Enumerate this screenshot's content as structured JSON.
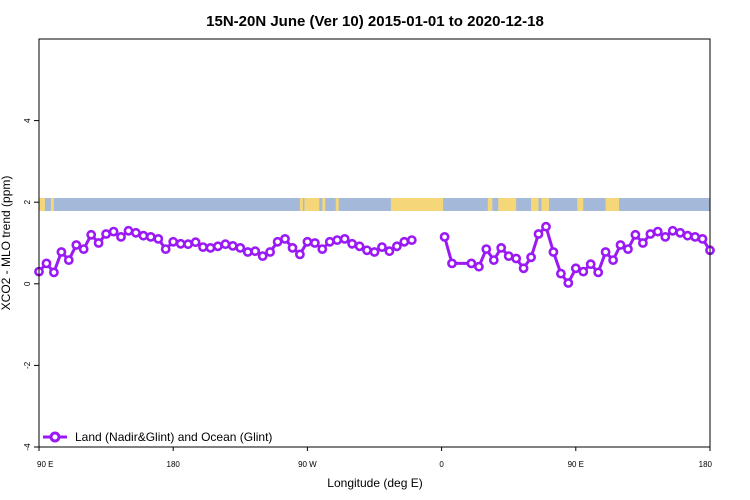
{
  "chart_data": {
    "type": "line",
    "title": "15N-20N June (Ver 10)   2015-01-01 to 2020-12-18",
    "xlabel": "Longitude (deg E)",
    "ylabel": "XCO2 - MLO trend (ppm)",
    "ylim": [
      -4,
      6
    ],
    "y_ticks": [
      -4,
      -2,
      0,
      2,
      4
    ],
    "x_tick_labels": [
      "90 E",
      "180",
      "90 W",
      "0",
      "90 E",
      "180"
    ],
    "series": [
      {
        "name": "Land (Nadir&Glint) and Ocean (Glint)",
        "color": "#9b19f5",
        "segments": [
          [
            [
              90,
              0.3
            ],
            [
              95,
              0.5
            ],
            [
              100,
              0.28
            ],
            [
              105,
              0.78
            ],
            [
              110,
              0.58
            ],
            [
              115,
              0.95
            ],
            [
              120,
              0.85
            ],
            [
              125,
              1.2
            ],
            [
              130,
              1.0
            ],
            [
              135,
              1.22
            ],
            [
              140,
              1.28
            ],
            [
              145,
              1.15
            ],
            [
              150,
              1.3
            ],
            [
              155,
              1.25
            ],
            [
              160,
              1.18
            ],
            [
              165,
              1.15
            ],
            [
              170,
              1.1
            ],
            [
              175,
              0.85
            ],
            [
              180,
              1.03
            ],
            [
              185,
              0.98
            ],
            [
              190,
              0.97
            ],
            [
              195,
              1.02
            ],
            [
              200,
              0.9
            ],
            [
              205,
              0.88
            ],
            [
              210,
              0.92
            ],
            [
              215,
              0.97
            ],
            [
              220,
              0.93
            ],
            [
              225,
              0.88
            ],
            [
              230,
              0.78
            ],
            [
              235,
              0.8
            ],
            [
              240,
              0.68
            ],
            [
              245,
              0.78
            ],
            [
              250,
              1.03
            ],
            [
              255,
              1.1
            ],
            [
              260,
              0.88
            ],
            [
              265,
              0.72
            ],
            [
              270,
              1.03
            ],
            [
              275,
              1.0
            ],
            [
              280,
              0.85
            ],
            [
              285,
              1.03
            ],
            [
              290,
              1.07
            ],
            [
              295,
              1.1
            ],
            [
              300,
              0.98
            ],
            [
              305,
              0.92
            ],
            [
              310,
              0.82
            ],
            [
              315,
              0.78
            ],
            [
              320,
              0.9
            ],
            [
              325,
              0.8
            ],
            [
              330,
              0.92
            ],
            [
              335,
              1.03
            ],
            [
              340,
              1.07
            ]
          ],
          [
            [
              362,
              1.15
            ],
            [
              367,
              0.5
            ],
            [
              380,
              0.5
            ],
            [
              385,
              0.42
            ],
            [
              390,
              0.85
            ],
            [
              395,
              0.58
            ],
            [
              400,
              0.88
            ],
            [
              405,
              0.68
            ],
            [
              410,
              0.62
            ],
            [
              415,
              0.38
            ],
            [
              420,
              0.65
            ],
            [
              425,
              1.22
            ],
            [
              430,
              1.4
            ],
            [
              435,
              0.78
            ],
            [
              440,
              0.25
            ],
            [
              445,
              0.02
            ],
            [
              450,
              0.38
            ],
            [
              455,
              0.3
            ],
            [
              460,
              0.48
            ],
            [
              465,
              0.28
            ],
            [
              470,
              0.78
            ],
            [
              475,
              0.58
            ],
            [
              480,
              0.95
            ],
            [
              485,
              0.85
            ],
            [
              490,
              1.2
            ],
            [
              495,
              1.0
            ],
            [
              500,
              1.22
            ],
            [
              505,
              1.28
            ],
            [
              510,
              1.15
            ],
            [
              515,
              1.3
            ],
            [
              520,
              1.25
            ],
            [
              525,
              1.18
            ],
            [
              530,
              1.15
            ],
            [
              535,
              1.1
            ],
            [
              540,
              0.82
            ]
          ]
        ]
      }
    ],
    "map_strip": {
      "land_color": "#f5d77a",
      "ocean_color": "#a4b9d9",
      "land_ranges": [
        [
          90,
          94
        ],
        [
          98,
          100
        ],
        [
          265,
          267
        ],
        [
          268,
          278
        ],
        [
          280,
          282
        ],
        [
          289,
          291
        ],
        [
          326,
          361
        ],
        [
          355,
          359
        ],
        [
          391,
          394
        ],
        [
          398,
          410
        ],
        [
          420,
          425
        ],
        [
          427,
          432
        ],
        [
          451,
          455
        ],
        [
          470,
          479
        ]
      ]
    },
    "legend": "bottom-left",
    "grid": false
  }
}
